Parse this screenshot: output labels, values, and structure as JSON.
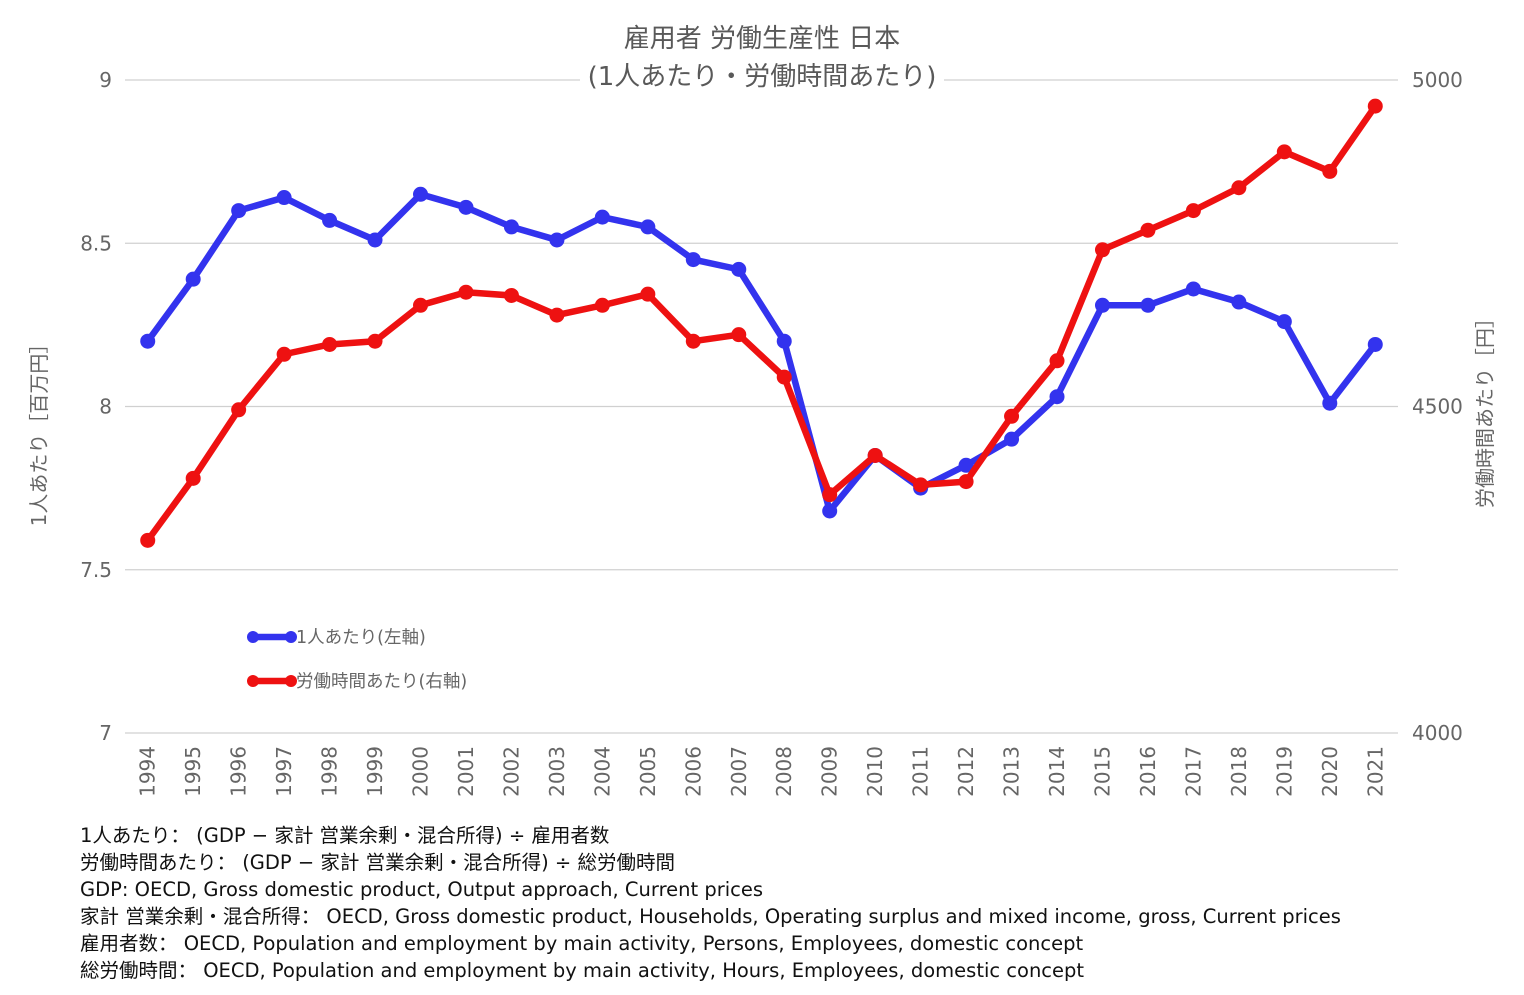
{
  "chart_data": {
    "type": "line",
    "title": "雇用者 労働生産性 日本",
    "subtitle": "(1人あたり・労働時間あたり)",
    "ylabel_left": "1人あたり［百万円］",
    "ylabel_right": "労働時間あたり［円］",
    "ylim_left": [
      7,
      9
    ],
    "ylim_right": [
      4000,
      5000
    ],
    "yticks_left": [
      "9",
      "8.5",
      "8",
      "7.5",
      "7"
    ],
    "yticks_right": [
      "5000",
      "4500",
      "4000"
    ],
    "grid": "horizontal",
    "legend_position": "lower-left inside",
    "categories": [
      "1994",
      "1995",
      "1996",
      "1997",
      "1998",
      "1999",
      "2000",
      "2001",
      "2002",
      "2003",
      "2004",
      "2005",
      "2006",
      "2007",
      "2008",
      "2009",
      "2010",
      "2011",
      "2012",
      "2013",
      "2014",
      "2015",
      "2016",
      "2017",
      "2018",
      "2019",
      "2020",
      "2021"
    ],
    "series": [
      {
        "name": "1人あたり(左軸)",
        "axis": "left",
        "color": "#3333ee",
        "values": [
          8.2,
          8.39,
          8.6,
          8.64,
          8.57,
          8.51,
          8.65,
          8.61,
          8.55,
          8.51,
          8.58,
          8.55,
          8.45,
          8.42,
          8.2,
          7.68,
          7.85,
          7.75,
          7.82,
          7.9,
          8.03,
          8.31,
          8.31,
          8.36,
          8.32,
          8.26,
          8.01,
          8.19
        ]
      },
      {
        "name": "労働時間あたり(右軸)",
        "axis": "right",
        "color": "#ee1111",
        "values": [
          4295,
          4390,
          4495,
          4580,
          4595,
          4600,
          4655,
          4675,
          4670,
          4640,
          4655,
          4672,
          4600,
          4610,
          4545,
          4365,
          4425,
          4380,
          4385,
          4485,
          4570,
          4740,
          4770,
          4800,
          4835,
          4890,
          4860,
          4960
        ]
      }
    ]
  },
  "notes": [
    "1人あたり： (GDP − 家計 営業余剰・混合所得) ÷ 雇用者数",
    "労働時間あたり： (GDP − 家計 営業余剰・混合所得) ÷ 総労働時間",
    "GDP: OECD, Gross domestic product, Output approach, Current prices",
    "家計 営業余剰・混合所得： OECD, Gross domestic product, Households, Operating surplus and mixed income, gross, Current prices",
    "雇用者数： OECD, Population and employment by main activity, Persons, Employees, domestic concept",
    "総労働時間： OECD, Population and employment by main activity, Hours, Employees, domestic concept"
  ]
}
